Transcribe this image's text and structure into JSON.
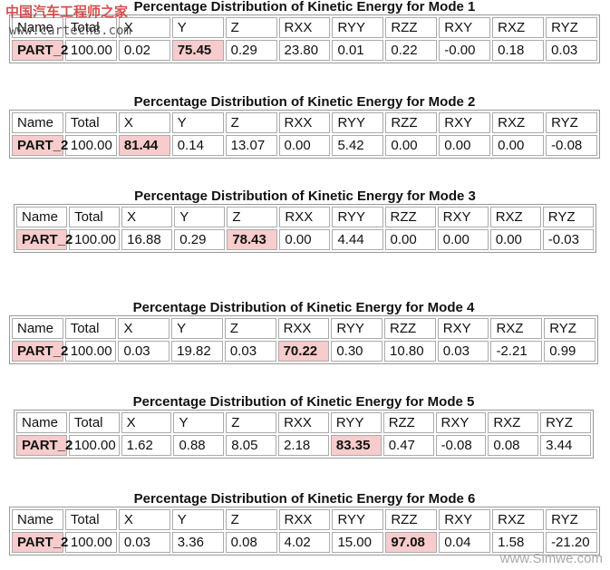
{
  "watermarks": {
    "top_cn": "中国汽车工程师之家",
    "top_url": "www.cartech8.com",
    "bottom_url": "www.Simwe.com"
  },
  "tables": [
    {
      "title": "Percentage Distribution of Kinetic Energy for Mode 1",
      "header": [
        "Name",
        "Total",
        "X",
        "Y",
        "Z",
        "RXX",
        "RYY",
        "RZZ",
        "RXY",
        "RXZ",
        "RYZ"
      ],
      "row": [
        "PART_2",
        "100.00",
        "0.02",
        "75.45",
        "0.29",
        "23.80",
        "0.01",
        "0.22",
        "-0.00",
        "0.18",
        "0.03"
      ],
      "highlight": 3
    },
    {
      "title": "Percentage Distribution of Kinetic Energy for Mode 2",
      "header": [
        "Name",
        "Total",
        "X",
        "Y",
        "Z",
        "RXX",
        "RYY",
        "RZZ",
        "RXY",
        "RXZ",
        "RYZ"
      ],
      "row": [
        "PART_2",
        "100.00",
        "81.44",
        "0.14",
        "13.07",
        "0.00",
        "5.42",
        "0.00",
        "0.00",
        "0.00",
        "-0.08"
      ],
      "highlight": 2
    },
    {
      "title": "Percentage Distribution of Kinetic Energy for Mode 3",
      "header": [
        "Name",
        "Total",
        "X",
        "Y",
        "Z",
        "RXX",
        "RYY",
        "RZZ",
        "RXY",
        "RXZ",
        "RYZ"
      ],
      "row": [
        "PART_2",
        "100.00",
        "16.88",
        "0.29",
        "78.43",
        "0.00",
        "4.44",
        "0.00",
        "0.00",
        "0.00",
        "-0.03"
      ],
      "highlight": 4
    },
    {
      "title": "Percentage Distribution of Kinetic Energy for Mode 4",
      "header": [
        "Name",
        "Total",
        "X",
        "Y",
        "Z",
        "RXX",
        "RYY",
        "RZZ",
        "RXY",
        "RXZ",
        "RYZ"
      ],
      "row": [
        "PART_2",
        "100.00",
        "0.03",
        "19.82",
        "0.03",
        "70.22",
        "0.30",
        "10.80",
        "0.03",
        "-2.21",
        "0.99"
      ],
      "highlight": 5
    },
    {
      "title": "Percentage Distribution of Kinetic Energy for Mode 5",
      "header": [
        "Name",
        "Total",
        "X",
        "Y",
        "Z",
        "RXX",
        "RYY",
        "RZZ",
        "RXY",
        "RXZ",
        "RYZ"
      ],
      "row": [
        "PART_2",
        "100.00",
        "1.62",
        "0.88",
        "8.05",
        "2.18",
        "83.35",
        "0.47",
        "-0.08",
        "0.08",
        "3.44"
      ],
      "highlight": 6
    },
    {
      "title": "Percentage Distribution of Kinetic Energy for Mode 6",
      "header": [
        "Name",
        "Total",
        "X",
        "Y",
        "Z",
        "RXX",
        "RYY",
        "RZZ",
        "RXY",
        "RXZ",
        "RYZ"
      ],
      "row": [
        "PART_2",
        "100.00",
        "0.03",
        "3.36",
        "0.08",
        "4.02",
        "15.00",
        "97.08",
        "0.04",
        "1.58",
        "-21.20"
      ],
      "highlight": 7
    }
  ]
}
